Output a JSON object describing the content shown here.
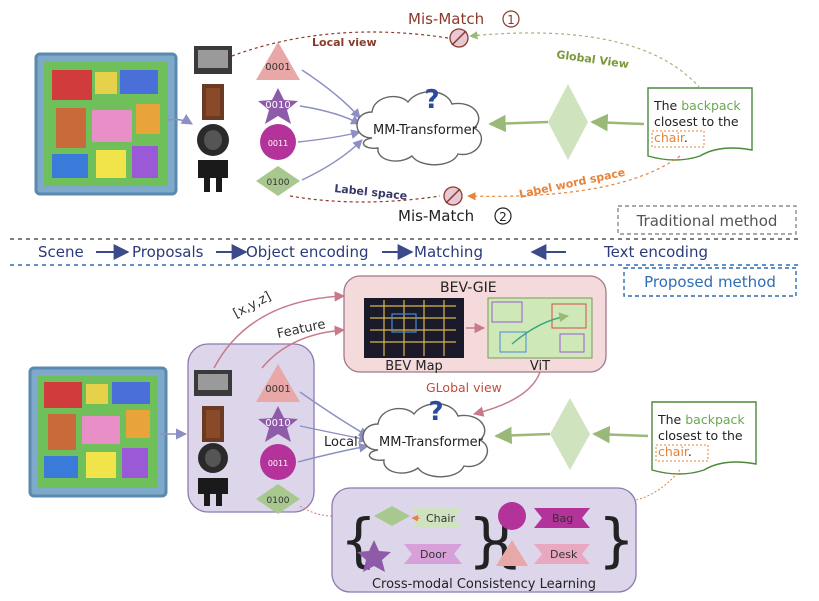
{
  "traditional": {
    "mismatch1": "Mis-Match",
    "mismatch1_num": "1",
    "mismatch2": "Mis-Match",
    "mismatch2_num": "2",
    "local_view": "Local view",
    "global_view": "Global View",
    "label_space": "Label space",
    "label_word_space": "Label word space",
    "transformer": "MM-Transformer",
    "question": "?",
    "codes": [
      "0001",
      "0010",
      "0011",
      "0100"
    ],
    "text_card": {
      "pre": "The ",
      "highlight1": "backpack",
      "mid": "closest to the",
      "highlight2": "chair",
      "post": "."
    },
    "method_label": "Traditional method"
  },
  "pipeline": {
    "scene": "Scene",
    "proposals": "Proposals",
    "object_encoding": "Object encoding",
    "matching": "Matching",
    "text_encoding": "Text encoding"
  },
  "proposed": {
    "method_label": "Proposed method",
    "xyz": "[x,y,z]",
    "feature": "Feature",
    "bev_gie": "BEV-GIE",
    "bev_map": "BEV Map",
    "vit": "ViT",
    "global_view": "GLobal view",
    "local": "Local",
    "transformer": "MM-Transformer",
    "question": "?",
    "codes": [
      "0001",
      "0010",
      "0011",
      "0100"
    ],
    "text_card": {
      "pre": "The ",
      "highlight1": "backpack",
      "mid": "closest to the",
      "highlight2": "chair",
      "post": "."
    },
    "cross_modal": {
      "title": "Cross-modal Consistency Learning",
      "labels": [
        "Chair",
        "Door",
        "Bag",
        "Desk"
      ]
    }
  },
  "colors": {
    "arrow_blue": "#8b8fc4",
    "mismatch_brown": "#8b3a2a",
    "global_green": "#7a9a3a",
    "label_orange": "#e8833a",
    "triangle_pink": "#e8a8a8",
    "star_purple": "#8e5ba8",
    "circle_magenta": "#b3339a",
    "diamond_green": "#a8c890",
    "big_diamond": "#cfe3bf",
    "bev_box": "#f4dada",
    "proposal_box": "#ddd6ea",
    "cml_box": "#ddd6ea",
    "dashed_blue": "#2f6db5"
  }
}
